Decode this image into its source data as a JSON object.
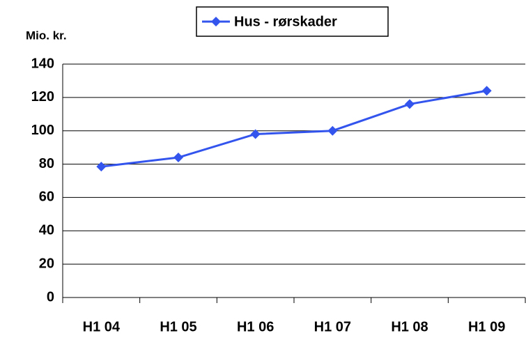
{
  "chart_data": {
    "type": "line",
    "y_axis_label": "Mio. kr.",
    "categories": [
      "H1 04",
      "H1 05",
      "H1 06",
      "H1 07",
      "H1 08",
      "H1 09"
    ],
    "series": [
      {
        "name": "Hus - rørskader",
        "color": "#3355ee",
        "values": [
          78.5,
          84,
          98,
          100,
          116,
          124
        ]
      }
    ],
    "ylim": [
      0,
      140
    ],
    "yticks": [
      0,
      20,
      40,
      60,
      80,
      100,
      120,
      140
    ],
    "grid": true,
    "legend": "top"
  }
}
